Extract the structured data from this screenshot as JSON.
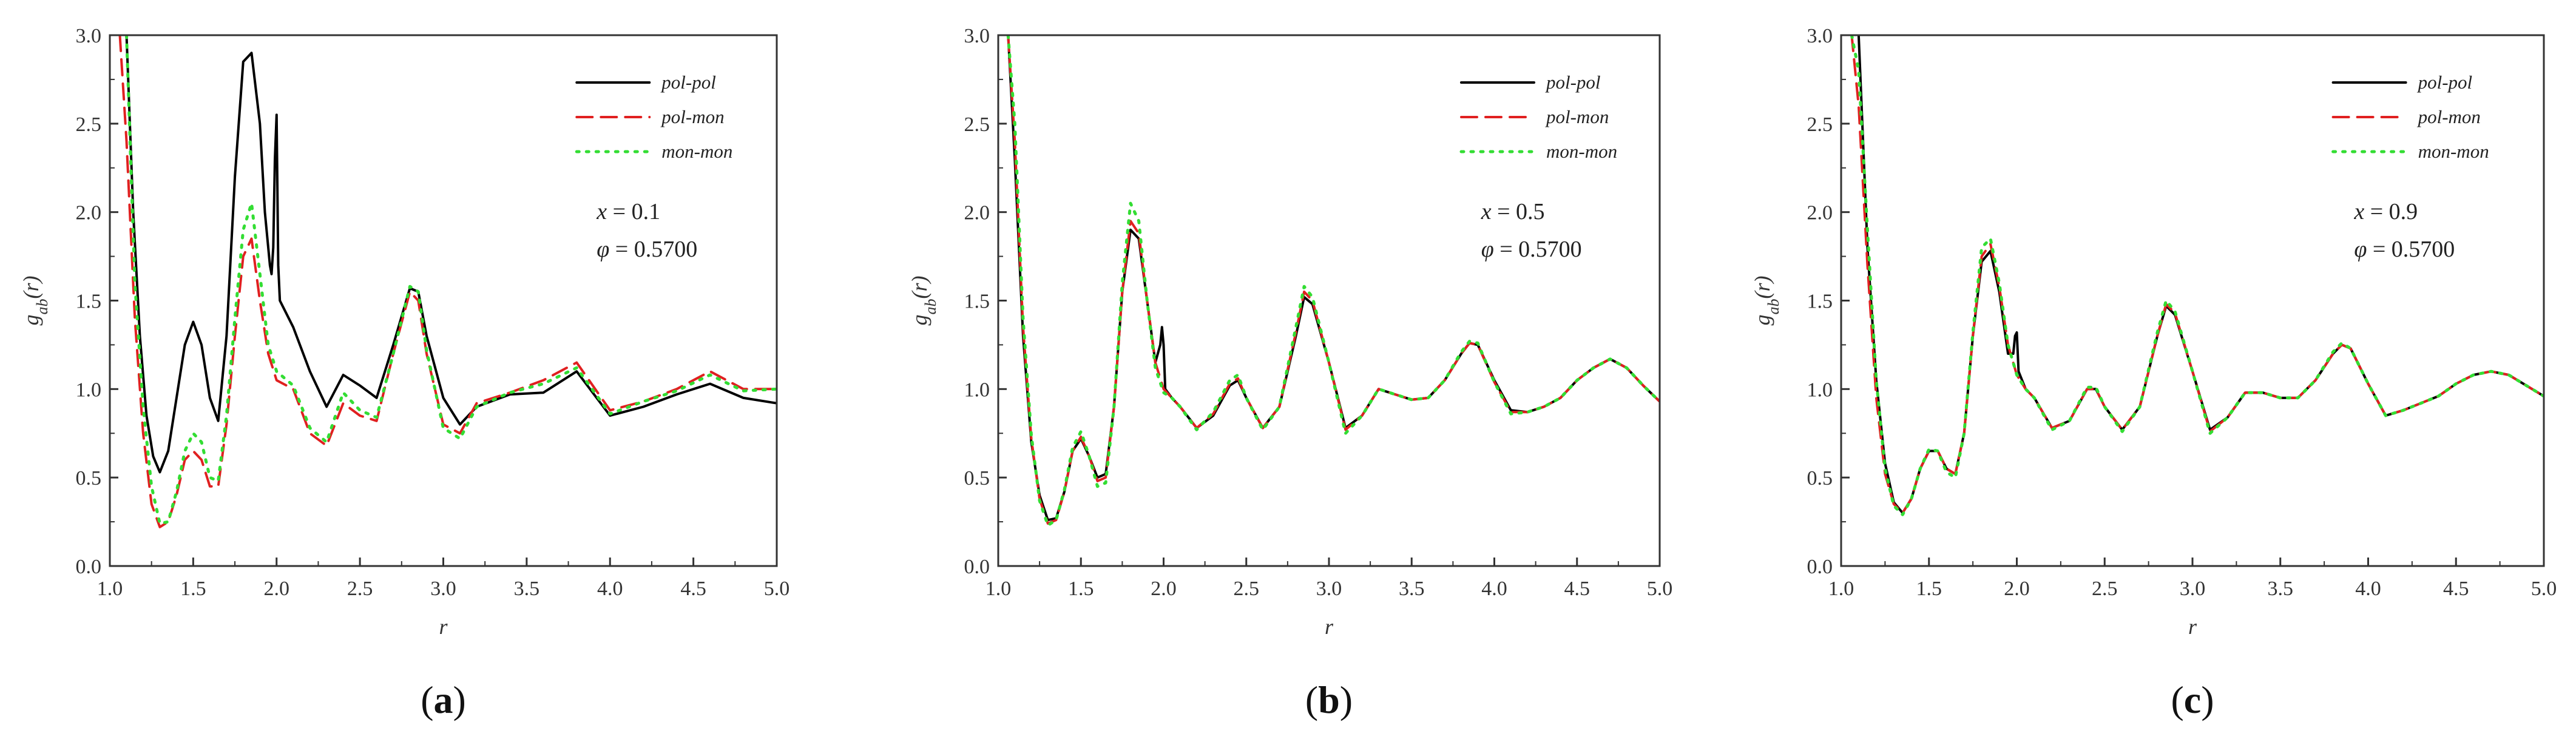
{
  "chart_data": [
    {
      "type": "line",
      "panel_label": "a",
      "xlabel": "r",
      "ylabel": "g_ab(r)",
      "xlim": [
        1.0,
        5.0
      ],
      "ylim": [
        0.0,
        3.0
      ],
      "xticks": [
        "1.0",
        "1.5",
        "2.0",
        "2.5",
        "3.0",
        "3.5",
        "4.0",
        "4.5",
        "5.0"
      ],
      "yticks": [
        "0.0",
        "0.5",
        "1.0",
        "1.5",
        "2.0",
        "2.5",
        "3.0"
      ],
      "legend_position": "top-right",
      "annotations": [
        "x = 0.1",
        "φ = 0.5700"
      ],
      "series": [
        {
          "name": "pol-pol",
          "color": "#000000",
          "dash": "solid",
          "x": [
            1.1,
            1.14,
            1.18,
            1.22,
            1.26,
            1.3,
            1.35,
            1.4,
            1.45,
            1.5,
            1.55,
            1.6,
            1.65,
            1.7,
            1.75,
            1.8,
            1.85,
            1.9,
            1.93,
            1.96,
            1.97,
            1.98,
            1.99,
            2.0,
            2.01,
            2.02,
            2.1,
            2.2,
            2.3,
            2.4,
            2.5,
            2.6,
            2.7,
            2.8,
            2.85,
            2.9,
            3.0,
            3.1,
            3.2,
            3.4,
            3.6,
            3.8,
            4.0,
            4.2,
            4.4,
            4.6,
            4.8,
            5.0
          ],
          "y": [
            3.0,
            2.0,
            1.3,
            0.85,
            0.62,
            0.53,
            0.65,
            0.95,
            1.25,
            1.38,
            1.25,
            0.95,
            0.82,
            1.3,
            2.2,
            2.85,
            2.9,
            2.5,
            2.0,
            1.7,
            1.65,
            1.8,
            2.3,
            2.55,
            1.7,
            1.5,
            1.35,
            1.1,
            0.9,
            1.08,
            1.02,
            0.95,
            1.25,
            1.57,
            1.55,
            1.3,
            0.95,
            0.8,
            0.9,
            0.97,
            0.98,
            1.1,
            0.85,
            0.9,
            0.97,
            1.03,
            0.95,
            0.92
          ]
        },
        {
          "name": "pol-mon",
          "color": "#e02020",
          "dash": "dashed",
          "x": [
            1.06,
            1.1,
            1.15,
            1.2,
            1.25,
            1.3,
            1.35,
            1.4,
            1.45,
            1.5,
            1.55,
            1.6,
            1.65,
            1.7,
            1.75,
            1.8,
            1.85,
            1.9,
            1.95,
            2.0,
            2.1,
            2.2,
            2.3,
            2.4,
            2.5,
            2.6,
            2.7,
            2.8,
            2.85,
            2.9,
            3.0,
            3.1,
            3.2,
            3.4,
            3.6,
            3.8,
            4.0,
            4.2,
            4.4,
            4.6,
            4.8,
            5.0
          ],
          "y": [
            3.0,
            2.4,
            1.4,
            0.75,
            0.35,
            0.22,
            0.25,
            0.4,
            0.6,
            0.65,
            0.6,
            0.45,
            0.45,
            0.8,
            1.3,
            1.75,
            1.85,
            1.5,
            1.2,
            1.05,
            1.0,
            0.75,
            0.68,
            0.92,
            0.85,
            0.82,
            1.2,
            1.55,
            1.5,
            1.2,
            0.8,
            0.75,
            0.92,
            0.98,
            1.05,
            1.15,
            0.88,
            0.93,
            1.0,
            1.1,
            1.0,
            1.0
          ]
        },
        {
          "name": "mon-mon",
          "color": "#33dd33",
          "dash": "dotted",
          "x": [
            1.1,
            1.15,
            1.2,
            1.25,
            1.3,
            1.35,
            1.4,
            1.45,
            1.5,
            1.55,
            1.6,
            1.65,
            1.7,
            1.75,
            1.8,
            1.85,
            1.9,
            1.95,
            2.0,
            2.1,
            2.2,
            2.3,
            2.4,
            2.5,
            2.6,
            2.7,
            2.8,
            2.85,
            2.9,
            3.0,
            3.1,
            3.2,
            3.4,
            3.6,
            3.8,
            4.0,
            4.2,
            4.4,
            4.6,
            4.8,
            5.0
          ],
          "y": [
            3.0,
            1.6,
            0.9,
            0.45,
            0.24,
            0.25,
            0.42,
            0.65,
            0.75,
            0.7,
            0.5,
            0.48,
            0.85,
            1.4,
            1.9,
            2.05,
            1.65,
            1.25,
            1.1,
            1.02,
            0.78,
            0.7,
            0.98,
            0.88,
            0.84,
            1.2,
            1.58,
            1.55,
            1.22,
            0.78,
            0.72,
            0.9,
            0.98,
            1.03,
            1.12,
            0.86,
            0.93,
            0.99,
            1.08,
            0.99,
            1.0
          ]
        }
      ]
    },
    {
      "type": "line",
      "panel_label": "b",
      "xlabel": "r",
      "ylabel": "g_ab(r)",
      "xlim": [
        1.0,
        5.0
      ],
      "ylim": [
        0.0,
        3.0
      ],
      "xticks": [
        "1.0",
        "1.5",
        "2.0",
        "2.5",
        "3.0",
        "3.5",
        "4.0",
        "4.5",
        "5.0"
      ],
      "yticks": [
        "0.0",
        "0.5",
        "1.0",
        "1.5",
        "2.0",
        "2.5",
        "3.0"
      ],
      "legend_position": "top-right",
      "annotations": [
        "x = 0.5",
        "φ = 0.5700"
      ],
      "series": [
        {
          "name": "pol-pol",
          "color": "#000000",
          "dash": "solid",
          "x": [
            1.06,
            1.1,
            1.15,
            1.2,
            1.25,
            1.3,
            1.35,
            1.4,
            1.45,
            1.5,
            1.55,
            1.6,
            1.65,
            1.7,
            1.75,
            1.8,
            1.85,
            1.9,
            1.95,
            1.98,
            1.99,
            2.0,
            2.01,
            2.05,
            2.1,
            2.2,
            2.3,
            2.4,
            2.45,
            2.5,
            2.6,
            2.7,
            2.8,
            2.85,
            2.9,
            3.0,
            3.1,
            3.2,
            3.3,
            3.4,
            3.5,
            3.6,
            3.7,
            3.8,
            3.85,
            3.9,
            4.0,
            4.1,
            4.2,
            4.3,
            4.4,
            4.5,
            4.6,
            4.7,
            4.8,
            4.9,
            5.0
          ],
          "y": [
            3.0,
            2.3,
            1.3,
            0.7,
            0.4,
            0.26,
            0.27,
            0.42,
            0.65,
            0.72,
            0.62,
            0.5,
            0.52,
            0.9,
            1.55,
            1.9,
            1.85,
            1.5,
            1.15,
            1.25,
            1.35,
            1.25,
            1.0,
            0.95,
            0.9,
            0.78,
            0.85,
            1.02,
            1.05,
            0.95,
            0.78,
            0.9,
            1.3,
            1.52,
            1.48,
            1.15,
            0.78,
            0.85,
            1.0,
            0.97,
            0.94,
            0.95,
            1.05,
            1.2,
            1.26,
            1.25,
            1.05,
            0.88,
            0.87,
            0.9,
            0.95,
            1.05,
            1.12,
            1.17,
            1.12,
            1.02,
            0.93
          ]
        },
        {
          "name": "pol-mon",
          "color": "#e02020",
          "dash": "dashed",
          "x": [
            1.06,
            1.1,
            1.15,
            1.2,
            1.25,
            1.3,
            1.35,
            1.4,
            1.45,
            1.5,
            1.55,
            1.6,
            1.65,
            1.7,
            1.75,
            1.8,
            1.85,
            1.9,
            1.95,
            2.0,
            2.05,
            2.1,
            2.2,
            2.3,
            2.4,
            2.45,
            2.5,
            2.6,
            2.7,
            2.8,
            2.85,
            2.9,
            3.0,
            3.1,
            3.2,
            3.3,
            3.4,
            3.5,
            3.6,
            3.7,
            3.8,
            3.85,
            3.9,
            4.0,
            4.1,
            4.2,
            4.3,
            4.4,
            4.5,
            4.6,
            4.7,
            4.8,
            4.9,
            5.0
          ],
          "y": [
            3.0,
            2.4,
            1.35,
            0.72,
            0.38,
            0.24,
            0.26,
            0.42,
            0.65,
            0.73,
            0.62,
            0.48,
            0.5,
            0.9,
            1.55,
            1.95,
            1.88,
            1.5,
            1.15,
            1.0,
            0.95,
            0.9,
            0.78,
            0.86,
            1.03,
            1.06,
            0.95,
            0.78,
            0.9,
            1.32,
            1.55,
            1.5,
            1.15,
            0.77,
            0.85,
            1.0,
            0.97,
            0.94,
            0.95,
            1.05,
            1.2,
            1.26,
            1.25,
            1.04,
            0.87,
            0.87,
            0.9,
            0.95,
            1.05,
            1.12,
            1.17,
            1.12,
            1.02,
            0.93
          ]
        },
        {
          "name": "mon-mon",
          "color": "#33dd33",
          "dash": "dotted",
          "x": [
            1.06,
            1.1,
            1.15,
            1.2,
            1.25,
            1.3,
            1.35,
            1.4,
            1.45,
            1.5,
            1.55,
            1.6,
            1.65,
            1.7,
            1.75,
            1.8,
            1.85,
            1.9,
            1.95,
            2.0,
            2.05,
            2.1,
            2.2,
            2.3,
            2.4,
            2.45,
            2.5,
            2.6,
            2.7,
            2.8,
            2.85,
            2.9,
            3.0,
            3.1,
            3.2,
            3.3,
            3.4,
            3.5,
            3.6,
            3.7,
            3.8,
            3.85,
            3.9,
            4.0,
            4.1,
            4.2,
            4.3,
            4.4,
            4.5,
            4.6,
            4.7,
            4.8,
            4.9,
            5.0
          ],
          "y": [
            3.0,
            2.5,
            1.4,
            0.74,
            0.37,
            0.23,
            0.26,
            0.43,
            0.67,
            0.76,
            0.62,
            0.45,
            0.47,
            0.9,
            1.6,
            2.05,
            1.95,
            1.5,
            1.12,
            0.98,
            0.95,
            0.9,
            0.77,
            0.87,
            1.05,
            1.08,
            0.95,
            0.77,
            0.9,
            1.35,
            1.58,
            1.52,
            1.15,
            0.75,
            0.85,
            1.0,
            0.97,
            0.94,
            0.95,
            1.05,
            1.21,
            1.27,
            1.26,
            1.04,
            0.86,
            0.87,
            0.9,
            0.95,
            1.05,
            1.12,
            1.17,
            1.12,
            1.02,
            0.93
          ]
        }
      ]
    },
    {
      "type": "line",
      "panel_label": "c",
      "xlabel": "r",
      "ylabel": "g_ab(r)",
      "xlim": [
        1.0,
        5.0
      ],
      "ylim": [
        0.0,
        3.0
      ],
      "xticks": [
        "1.0",
        "1.5",
        "2.0",
        "2.5",
        "3.0",
        "3.5",
        "4.0",
        "4.5",
        "5.0"
      ],
      "yticks": [
        "0.0",
        "0.5",
        "1.0",
        "1.5",
        "2.0",
        "2.5",
        "3.0"
      ],
      "legend_position": "top-right",
      "annotations": [
        "x = 0.9",
        "φ = 0.5700"
      ],
      "series": [
        {
          "name": "pol-pol",
          "color": "#000000",
          "dash": "solid",
          "x": [
            1.1,
            1.15,
            1.2,
            1.25,
            1.3,
            1.35,
            1.4,
            1.45,
            1.5,
            1.55,
            1.6,
            1.65,
            1.7,
            1.75,
            1.8,
            1.85,
            1.9,
            1.95,
            1.98,
            1.99,
            2.0,
            2.01,
            2.05,
            2.1,
            2.2,
            2.3,
            2.4,
            2.45,
            2.5,
            2.6,
            2.7,
            2.8,
            2.85,
            2.9,
            3.0,
            3.1,
            3.2,
            3.3,
            3.4,
            3.5,
            3.6,
            3.7,
            3.8,
            3.85,
            3.9,
            4.0,
            4.1,
            4.2,
            4.3,
            4.4,
            4.5,
            4.6,
            4.7,
            4.8,
            4.9,
            5.0
          ],
          "y": [
            3.0,
            1.8,
            1.05,
            0.58,
            0.36,
            0.3,
            0.38,
            0.55,
            0.65,
            0.65,
            0.55,
            0.52,
            0.75,
            1.3,
            1.72,
            1.78,
            1.55,
            1.2,
            1.2,
            1.3,
            1.32,
            1.1,
            1.0,
            0.95,
            0.78,
            0.82,
            1.0,
            1.0,
            0.9,
            0.77,
            0.9,
            1.3,
            1.47,
            1.42,
            1.1,
            0.77,
            0.84,
            0.98,
            0.98,
            0.95,
            0.95,
            1.05,
            1.2,
            1.25,
            1.23,
            1.03,
            0.85,
            0.88,
            0.92,
            0.96,
            1.03,
            1.08,
            1.1,
            1.08,
            1.02,
            0.96
          ]
        },
        {
          "name": "pol-mon",
          "color": "#e02020",
          "dash": "dashed",
          "x": [
            1.06,
            1.1,
            1.15,
            1.2,
            1.25,
            1.3,
            1.35,
            1.4,
            1.45,
            1.5,
            1.55,
            1.6,
            1.65,
            1.7,
            1.75,
            1.8,
            1.85,
            1.9,
            1.95,
            2.0,
            2.05,
            2.1,
            2.2,
            2.3,
            2.4,
            2.45,
            2.5,
            2.6,
            2.7,
            2.8,
            2.85,
            2.9,
            3.0,
            3.1,
            3.2,
            3.3,
            3.4,
            3.5,
            3.6,
            3.7,
            3.8,
            3.85,
            3.9,
            4.0,
            4.1,
            4.2,
            4.3,
            4.4,
            4.5,
            4.6,
            4.7,
            4.8,
            4.9,
            5.0
          ],
          "y": [
            3.0,
            2.6,
            1.7,
            0.95,
            0.52,
            0.35,
            0.3,
            0.38,
            0.55,
            0.65,
            0.65,
            0.55,
            0.52,
            0.75,
            1.3,
            1.75,
            1.82,
            1.58,
            1.25,
            1.08,
            1.0,
            0.95,
            0.78,
            0.82,
            1.0,
            1.0,
            0.9,
            0.77,
            0.9,
            1.3,
            1.48,
            1.43,
            1.1,
            0.76,
            0.84,
            0.98,
            0.98,
            0.95,
            0.95,
            1.05,
            1.2,
            1.25,
            1.23,
            1.03,
            0.85,
            0.88,
            0.92,
            0.96,
            1.03,
            1.08,
            1.1,
            1.08,
            1.02,
            0.96
          ]
        },
        {
          "name": "mon-mon",
          "color": "#33dd33",
          "dash": "dotted",
          "x": [
            1.06,
            1.1,
            1.15,
            1.2,
            1.25,
            1.3,
            1.35,
            1.4,
            1.45,
            1.5,
            1.55,
            1.6,
            1.65,
            1.7,
            1.75,
            1.8,
            1.85,
            1.9,
            1.95,
            2.0,
            2.05,
            2.1,
            2.2,
            2.3,
            2.4,
            2.45,
            2.5,
            2.6,
            2.7,
            2.8,
            2.85,
            2.9,
            3.0,
            3.1,
            3.2,
            3.3,
            3.4,
            3.5,
            3.6,
            3.7,
            3.8,
            3.85,
            3.9,
            4.0,
            4.1,
            4.2,
            4.3,
            4.4,
            4.5,
            4.6,
            4.7,
            4.8,
            4.9,
            5.0
          ],
          "y": [
            3.0,
            2.8,
            1.9,
            1.05,
            0.55,
            0.34,
            0.29,
            0.38,
            0.55,
            0.66,
            0.65,
            0.53,
            0.5,
            0.75,
            1.32,
            1.8,
            1.85,
            1.6,
            1.25,
            1.08,
            1.0,
            0.95,
            0.77,
            0.82,
            1.01,
            1.01,
            0.9,
            0.76,
            0.9,
            1.32,
            1.5,
            1.44,
            1.1,
            0.75,
            0.84,
            0.98,
            0.98,
            0.95,
            0.95,
            1.05,
            1.21,
            1.26,
            1.23,
            1.03,
            0.85,
            0.88,
            0.92,
            0.96,
            1.03,
            1.08,
            1.1,
            1.08,
            1.02,
            0.96
          ]
        }
      ]
    }
  ]
}
